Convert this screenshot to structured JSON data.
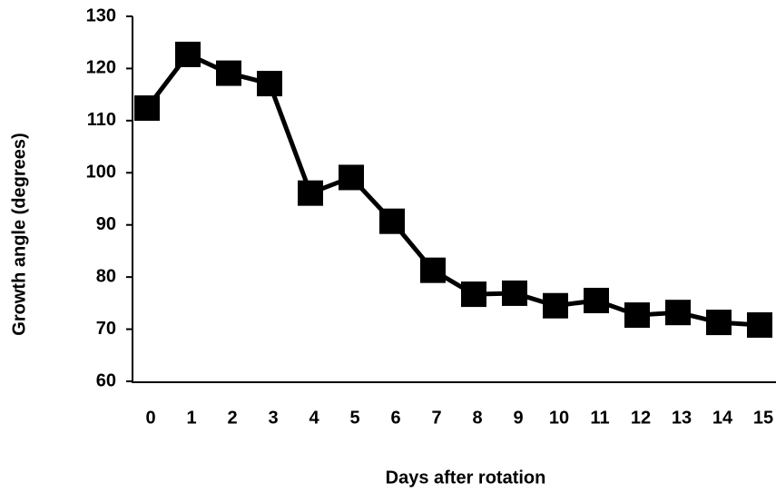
{
  "chart_data": {
    "type": "line",
    "x_label": "Days after rotation",
    "y_label": "Growth angle (degrees)",
    "categories": [
      "0",
      "1",
      "2",
      "3",
      "4",
      "5",
      "6",
      "7",
      "8",
      "9",
      "10",
      "11",
      "12",
      "13",
      "14",
      "15"
    ],
    "series": [
      {
        "name": "Growth angle",
        "color": "#000000",
        "values": [
          112.4,
          122.7,
          119.1,
          117.1,
          96.1,
          99.1,
          90.7,
          81.3,
          76.7,
          76.9,
          74.5,
          75.5,
          72.7,
          73.2,
          71.3,
          70.8
        ]
      }
    ],
    "ylim": [
      60,
      130
    ],
    "yticks": [
      60,
      70,
      80,
      90,
      100,
      110,
      120,
      130
    ],
    "grid": false
  }
}
